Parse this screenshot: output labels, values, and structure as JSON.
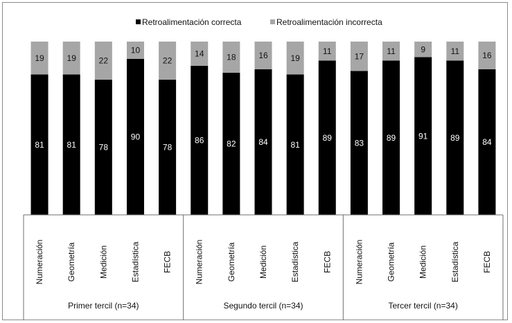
{
  "chart_data": {
    "type": "bar",
    "stacked": true,
    "title": "",
    "xlabel": "",
    "ylabel": "",
    "ylim": [
      0,
      100
    ],
    "grid": false,
    "legend_position": "top",
    "groups": [
      {
        "label": "Primer tercil (n=34)",
        "categories": [
          "Numeración",
          "Geometría",
          "Medición",
          "Estadística",
          "FECB"
        ]
      },
      {
        "label": "Segundo tercil (n=34)",
        "categories": [
          "Numeración",
          "Geometría",
          "Medición",
          "Estadística",
          "FECB"
        ]
      },
      {
        "label": "Tercer tercil (n=34)",
        "categories": [
          "Numeración",
          "Geometría",
          "Medición",
          "Estadística",
          "FECB"
        ]
      }
    ],
    "series": [
      {
        "name": "Retroalimentación correcta",
        "color": "#000000",
        "values": [
          81,
          81,
          78,
          90,
          78,
          86,
          82,
          84,
          81,
          89,
          83,
          89,
          91,
          89,
          84
        ]
      },
      {
        "name": "Retroalimentación incorrecta",
        "color": "#a6a6a6",
        "values": [
          19,
          19,
          22,
          10,
          22,
          14,
          18,
          16,
          19,
          11,
          17,
          11,
          9,
          11,
          16
        ]
      }
    ]
  }
}
